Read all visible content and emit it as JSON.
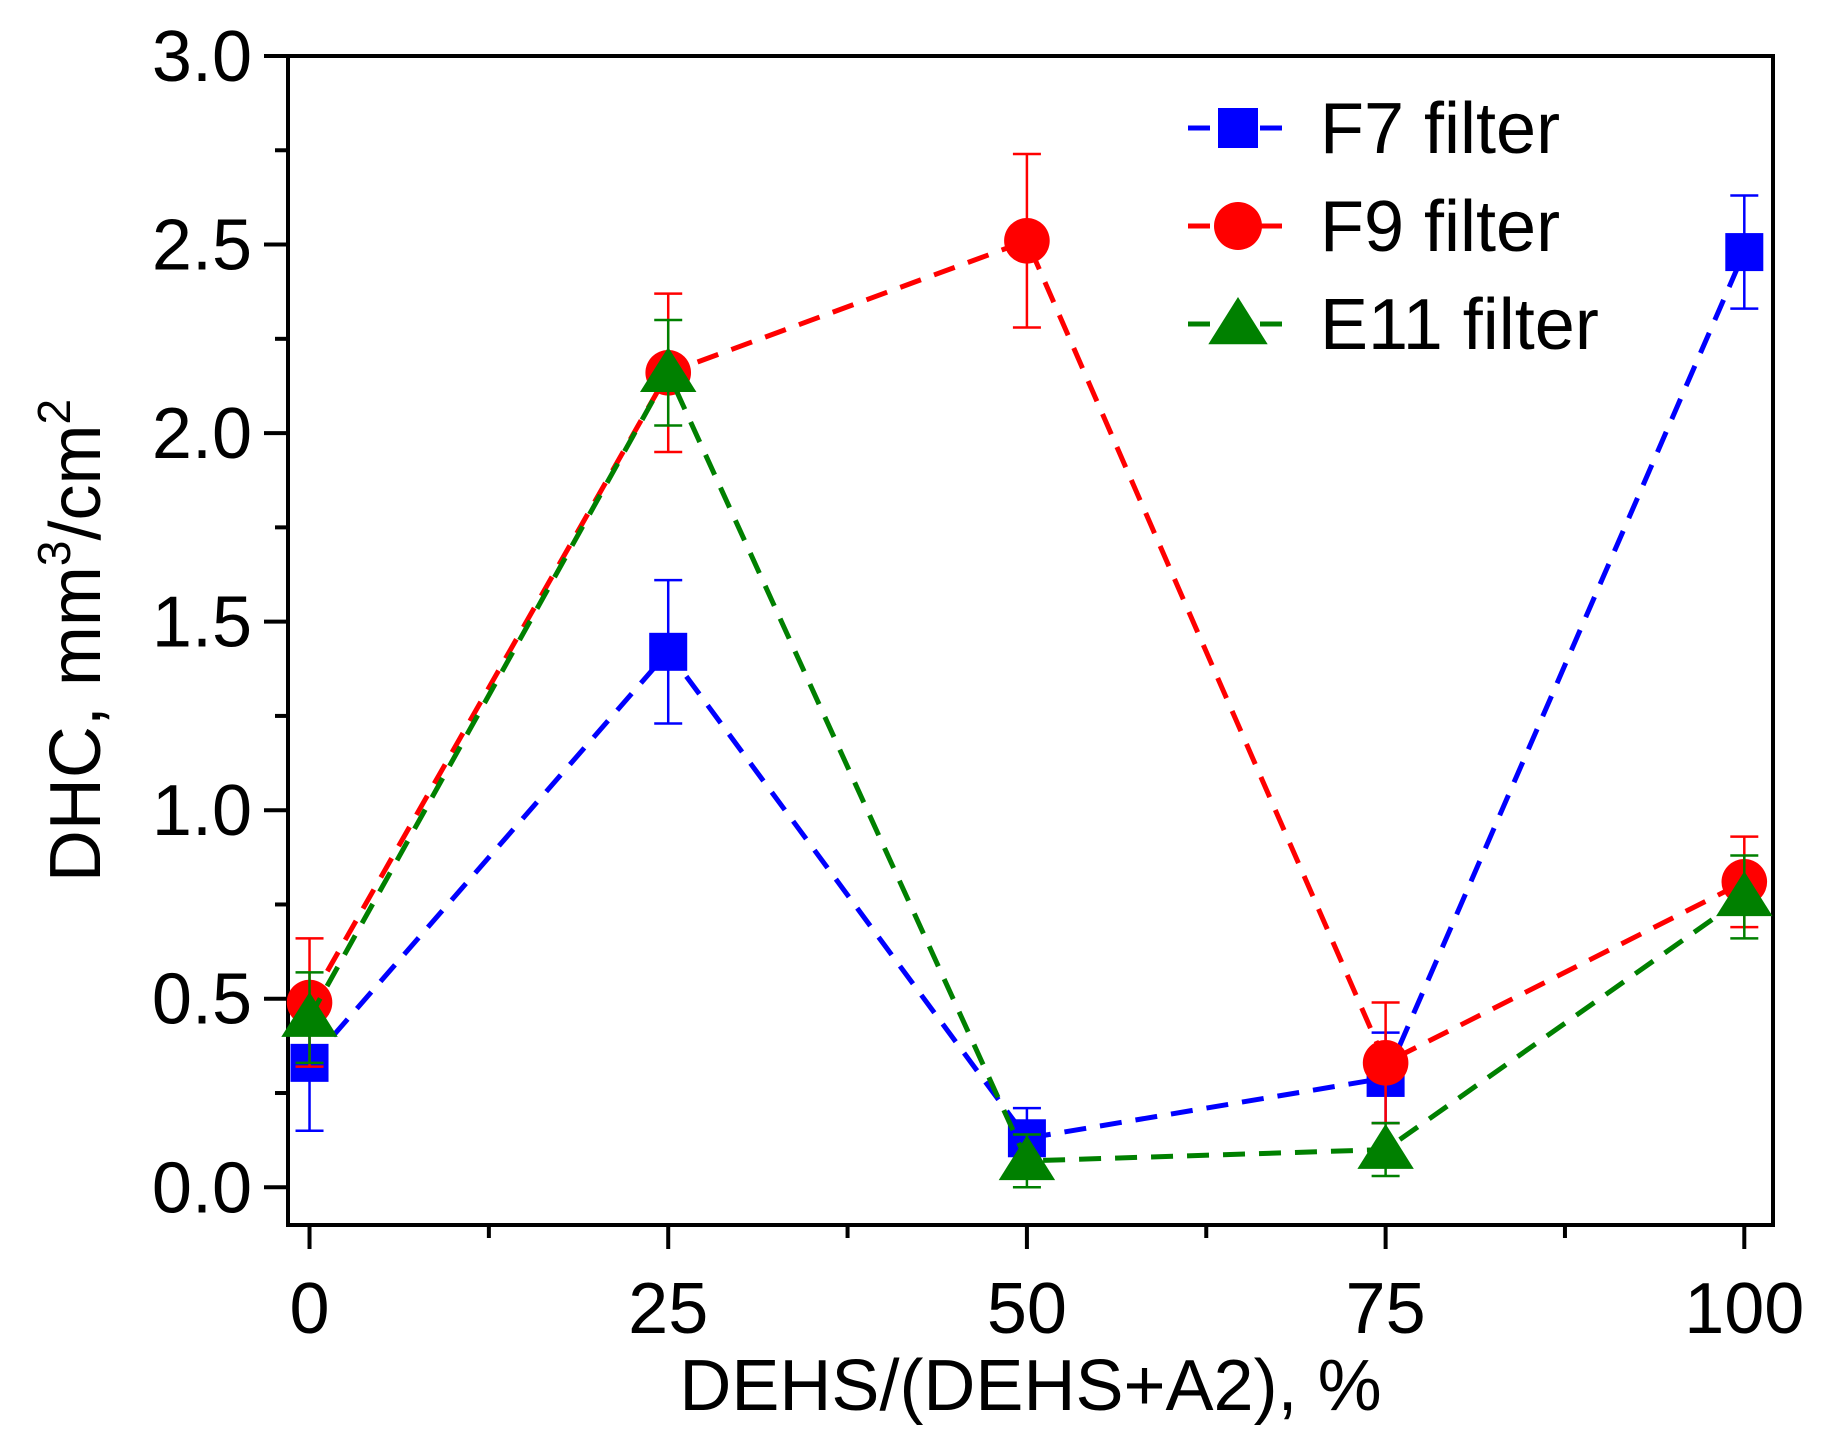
{
  "chart_data": {
    "type": "line",
    "title": "",
    "xlabel": "DEHS/(DEHS+A2), %",
    "ylabel": {
      "prefix": "DHC, mm",
      "sup1": "3",
      "mid": "/cm",
      "sup2": "2"
    },
    "x": [
      0,
      25,
      50,
      75,
      100
    ],
    "xlim": [
      -1.5,
      102
    ],
    "ylim": [
      -0.1,
      3.0
    ],
    "xticks": [
      0,
      25,
      50,
      75,
      100
    ],
    "xtick_labels": [
      "0",
      "25",
      "50",
      "75",
      "100"
    ],
    "yticks": [
      0.0,
      0.5,
      1.0,
      1.5,
      2.0,
      2.5,
      3.0
    ],
    "ytick_labels": [
      "0.0",
      "0.5",
      "1.0",
      "1.5",
      "2.0",
      "2.5",
      "3.0"
    ],
    "grid": false,
    "legend_position": "top-right",
    "series": [
      {
        "name": "F7 filter",
        "marker": "square",
        "color": "#0000ff",
        "values": [
          0.33,
          1.42,
          0.13,
          0.29,
          2.48
        ],
        "errors": [
          0.18,
          0.19,
          0.08,
          0.12,
          0.15
        ]
      },
      {
        "name": "F9 filter",
        "marker": "circle",
        "color": "#ff0000",
        "values": [
          0.49,
          2.16,
          2.51,
          0.33,
          0.81
        ],
        "errors": [
          0.17,
          0.21,
          0.23,
          0.16,
          0.12
        ]
      },
      {
        "name": "E11 filter",
        "marker": "triangle",
        "color": "#008000",
        "values": [
          0.45,
          2.16,
          0.07,
          0.1,
          0.77
        ],
        "errors": [
          0.12,
          0.14,
          0.07,
          0.07,
          0.11
        ]
      }
    ]
  }
}
